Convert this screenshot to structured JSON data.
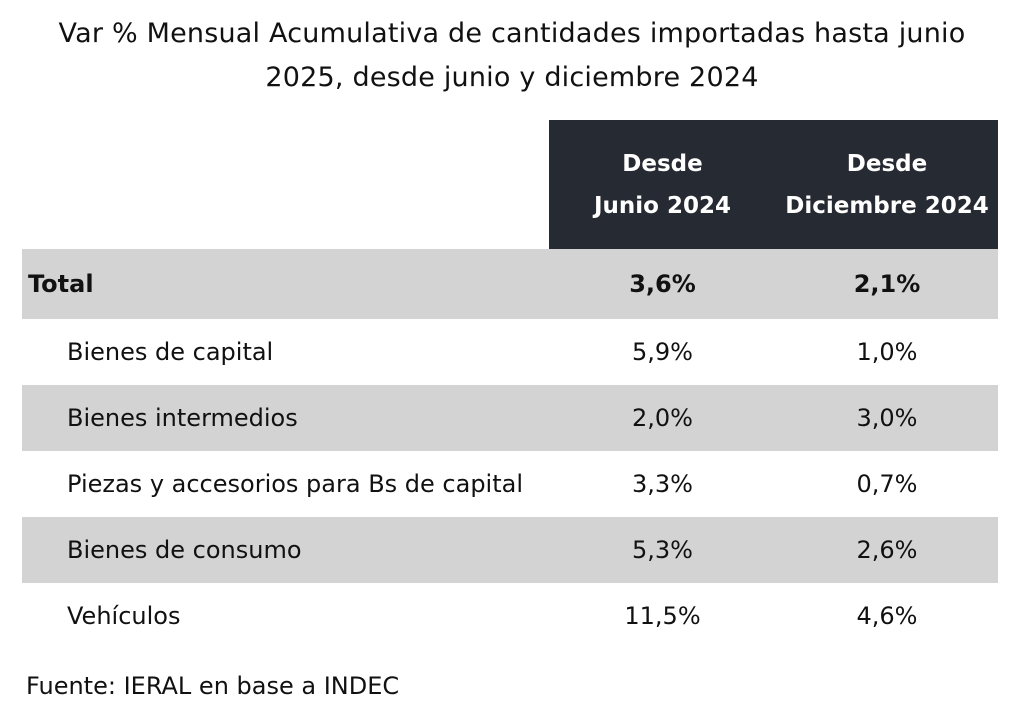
{
  "chart_data": {
    "type": "table",
    "title": "Var % Mensual Acumulativa de cantidades importadas hasta junio 2025, desde junio y diciembre 2024",
    "title_lines": [
      "Var % Mensual Acumulativa de cantidades importadas hasta junio",
      "2025, desde junio y diciembre 2024"
    ],
    "columns": [
      {
        "line1": "Desde",
        "line2": "Junio 2024"
      },
      {
        "line1": "Desde",
        "line2": "Diciembre 2024"
      }
    ],
    "rows": [
      {
        "label": "Total",
        "values": [
          "3,6%",
          "2,1%"
        ]
      },
      {
        "label": "Bienes de capital",
        "values": [
          "5,9%",
          "1,0%"
        ]
      },
      {
        "label": "Bienes intermedios",
        "values": [
          "2,0%",
          "3,0%"
        ]
      },
      {
        "label": "Piezas y accesorios para Bs de capital",
        "values": [
          "3,3%",
          "0,7%"
        ]
      },
      {
        "label": "Bienes de consumo",
        "values": [
          "5,3%",
          "2,6%"
        ]
      },
      {
        "label": "Vehículos",
        "values": [
          "11,5%",
          "4,6%"
        ]
      }
    ],
    "header_color": "#262a32",
    "shade_color": "#d3d3d3",
    "source": "Fuente: IERAL en base a INDEC"
  }
}
